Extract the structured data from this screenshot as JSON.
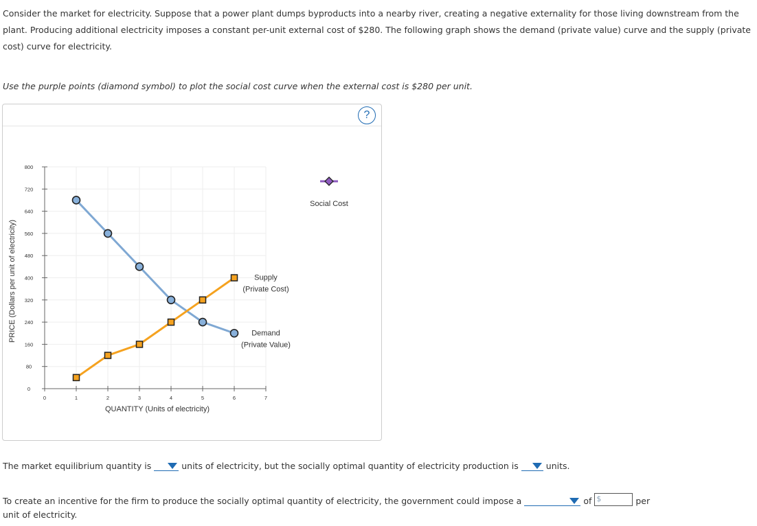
{
  "intro": "Consider the market for electricity. Suppose that a power plant dumps byproducts into a nearby river, creating a negative externality for those living downstream from the plant. Producing additional electricity imposes a constant per-unit external cost of $280. The following graph shows the demand (private value) curve and the supply (private cost) curve for electricity.",
  "instruction": "Use the purple points (diamond symbol) to plot the social cost curve when the external cost is $280 per unit.",
  "help_label": "?",
  "chart_data": {
    "type": "line",
    "xlabel": "QUANTITY (Units of electricity)",
    "ylabel": "PRICE (Dollars per unit of electricity)",
    "xlim": [
      0,
      7
    ],
    "ylim": [
      0,
      800
    ],
    "xticks": [
      0,
      1,
      2,
      3,
      4,
      5,
      6,
      7
    ],
    "yticks": [
      0,
      80,
      160,
      240,
      320,
      400,
      480,
      560,
      640,
      720,
      800
    ],
    "grid": true,
    "series": [
      {
        "name": "Demand",
        "label_line1": "Demand",
        "label_line2": "(Private Value)",
        "marker": "circle",
        "color": "#7fa8d3",
        "marker_fill": "#88b0da",
        "x": [
          1,
          2,
          3,
          4,
          5,
          6
        ],
        "values": [
          680,
          560,
          440,
          320,
          240,
          200
        ]
      },
      {
        "name": "Supply",
        "label_line1": "Supply",
        "label_line2": "(Private Cost)",
        "marker": "square",
        "color": "#f5a21f",
        "marker_fill": "#f5a21f",
        "x": [
          1,
          2,
          3,
          4,
          5,
          6
        ],
        "values": [
          40,
          120,
          160,
          240,
          320,
          400
        ]
      }
    ],
    "palette_tool": {
      "name": "Social Cost",
      "marker": "diamond",
      "color": "#8e5bbf"
    }
  },
  "q1": {
    "prefix": "The market equilibrium quantity is",
    "middle": "units of electricity, but the socially optimal quantity of electricity production is",
    "suffix": "units."
  },
  "q2": {
    "prefix": "To create an incentive for the firm to produce the socially optimal quantity of electricity, the government could impose a",
    "of_label": "of",
    "dollar": "$",
    "suffix": "per",
    "line2": "unit of electricity."
  }
}
